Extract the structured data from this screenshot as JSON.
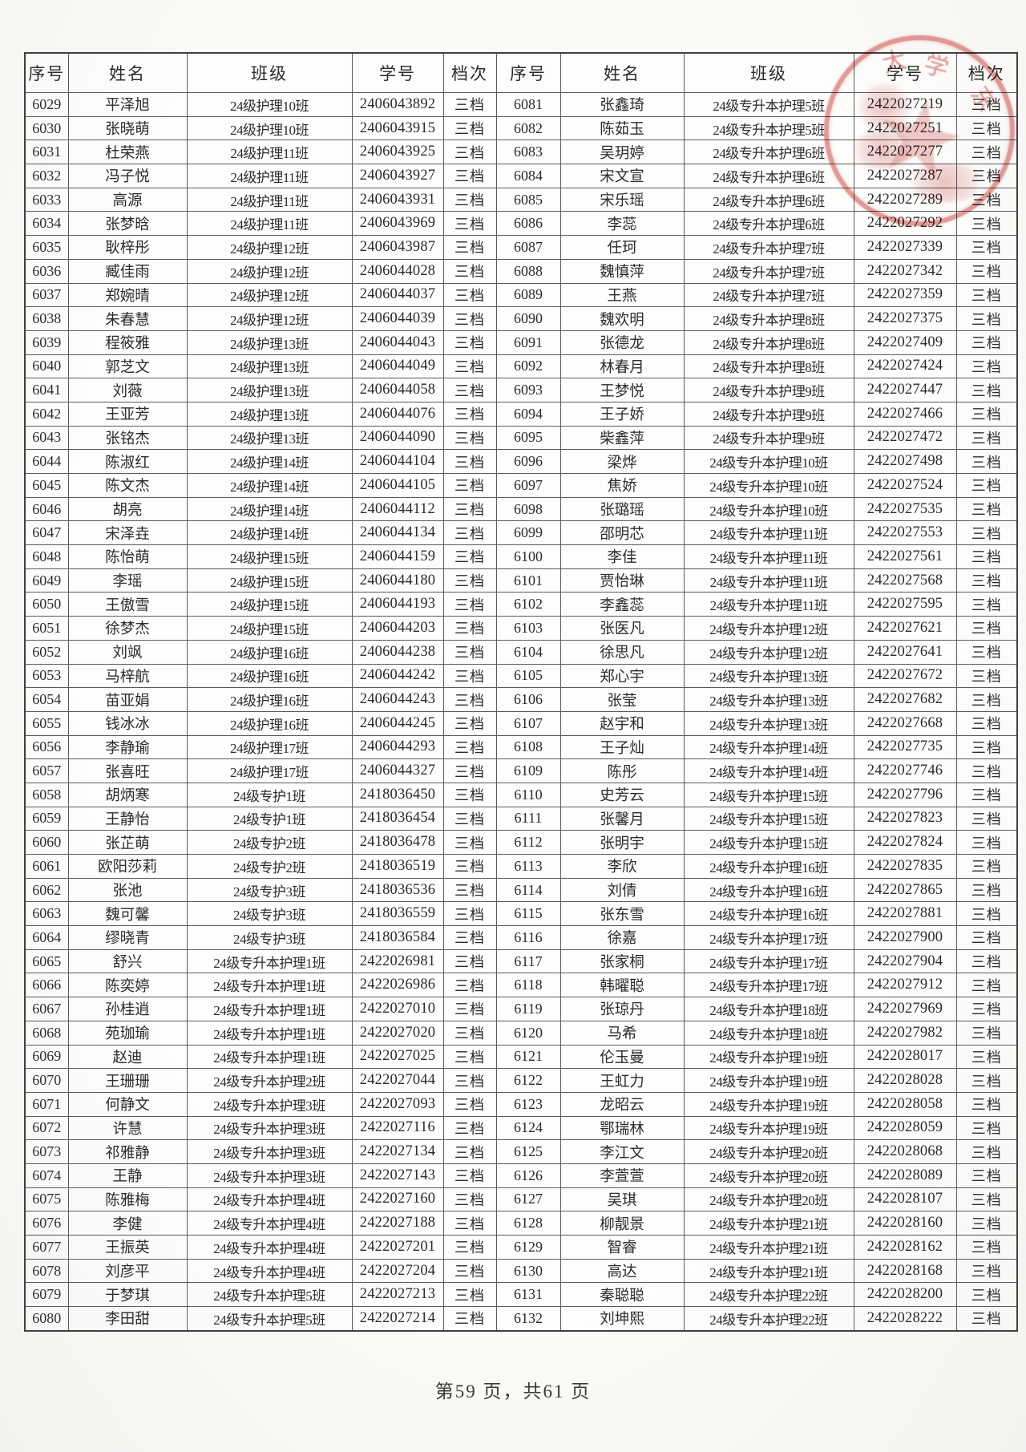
{
  "page": {
    "footer": "第59 页，共61 页"
  },
  "table": {
    "headers": [
      "序号",
      "姓名",
      "班级",
      "学号",
      "档次"
    ],
    "left_rows": [
      [
        "6029",
        "平泽旭",
        "24级护理10班",
        "2406043892",
        "三档"
      ],
      [
        "6030",
        "张晓萌",
        "24级护理10班",
        "2406043915",
        "三档"
      ],
      [
        "6031",
        "杜荣燕",
        "24级护理11班",
        "2406043925",
        "三档"
      ],
      [
        "6032",
        "冯子悦",
        "24级护理11班",
        "2406043927",
        "三档"
      ],
      [
        "6033",
        "高源",
        "24级护理11班",
        "2406043931",
        "三档"
      ],
      [
        "6034",
        "张梦晗",
        "24级护理11班",
        "2406043969",
        "三档"
      ],
      [
        "6035",
        "耿梓彤",
        "24级护理12班",
        "2406043987",
        "三档"
      ],
      [
        "6036",
        "臧佳雨",
        "24级护理12班",
        "2406044028",
        "三档"
      ],
      [
        "6037",
        "郑婉晴",
        "24级护理12班",
        "2406044037",
        "三档"
      ],
      [
        "6038",
        "朱春慧",
        "24级护理12班",
        "2406044039",
        "三档"
      ],
      [
        "6039",
        "程筱雅",
        "24级护理13班",
        "2406044043",
        "三档"
      ],
      [
        "6040",
        "郭芝文",
        "24级护理13班",
        "2406044049",
        "三档"
      ],
      [
        "6041",
        "刘薇",
        "24级护理13班",
        "2406044058",
        "三档"
      ],
      [
        "6042",
        "王亚芳",
        "24级护理13班",
        "2406044076",
        "三档"
      ],
      [
        "6043",
        "张铭杰",
        "24级护理13班",
        "2406044090",
        "三档"
      ],
      [
        "6044",
        "陈淑红",
        "24级护理14班",
        "2406044104",
        "三档"
      ],
      [
        "6045",
        "陈文杰",
        "24级护理14班",
        "2406044105",
        "三档"
      ],
      [
        "6046",
        "胡亮",
        "24级护理14班",
        "2406044112",
        "三档"
      ],
      [
        "6047",
        "宋泽垚",
        "24级护理14班",
        "2406044134",
        "三档"
      ],
      [
        "6048",
        "陈怡萌",
        "24级护理15班",
        "2406044159",
        "三档"
      ],
      [
        "6049",
        "李瑶",
        "24级护理15班",
        "2406044180",
        "三档"
      ],
      [
        "6050",
        "王傲雪",
        "24级护理15班",
        "2406044193",
        "三档"
      ],
      [
        "6051",
        "徐梦杰",
        "24级护理15班",
        "2406044203",
        "三档"
      ],
      [
        "6052",
        "刘飒",
        "24级护理16班",
        "2406044238",
        "三档"
      ],
      [
        "6053",
        "马梓航",
        "24级护理16班",
        "2406044242",
        "三档"
      ],
      [
        "6054",
        "苗亚娟",
        "24级护理16班",
        "2406044243",
        "三档"
      ],
      [
        "6055",
        "钱冰冰",
        "24级护理16班",
        "2406044245",
        "三档"
      ],
      [
        "6056",
        "李静瑜",
        "24级护理17班",
        "2406044293",
        "三档"
      ],
      [
        "6057",
        "张喜旺",
        "24级护理17班",
        "2406044327",
        "三档"
      ],
      [
        "6058",
        "胡炳寒",
        "24级专护1班",
        "2418036450",
        "三档"
      ],
      [
        "6059",
        "王静怡",
        "24级专护1班",
        "2418036454",
        "三档"
      ],
      [
        "6060",
        "张芷萌",
        "24级专护2班",
        "2418036478",
        "三档"
      ],
      [
        "6061",
        "欧阳莎莉",
        "24级专护2班",
        "2418036519",
        "三档"
      ],
      [
        "6062",
        "张池",
        "24级专护3班",
        "2418036536",
        "三档"
      ],
      [
        "6063",
        "魏可馨",
        "24级专护3班",
        "2418036559",
        "三档"
      ],
      [
        "6064",
        "缪晓青",
        "24级专护3班",
        "2418036584",
        "三档"
      ],
      [
        "6065",
        "舒兴",
        "24级专升本护理1班",
        "2422026981",
        "三档"
      ],
      [
        "6066",
        "陈奕婷",
        "24级专升本护理1班",
        "2422026986",
        "三档"
      ],
      [
        "6067",
        "孙桂逍",
        "24级专升本护理1班",
        "2422027010",
        "三档"
      ],
      [
        "6068",
        "苑珈瑜",
        "24级专升本护理1班",
        "2422027020",
        "三档"
      ],
      [
        "6069",
        "赵迪",
        "24级专升本护理1班",
        "2422027025",
        "三档"
      ],
      [
        "6070",
        "王珊珊",
        "24级专升本护理2班",
        "2422027044",
        "三档"
      ],
      [
        "6071",
        "何静文",
        "24级专升本护理3班",
        "2422027093",
        "三档"
      ],
      [
        "6072",
        "许慧",
        "24级专升本护理3班",
        "2422027116",
        "三档"
      ],
      [
        "6073",
        "祁雅静",
        "24级专升本护理3班",
        "2422027134",
        "三档"
      ],
      [
        "6074",
        "王静",
        "24级专升本护理3班",
        "2422027143",
        "三档"
      ],
      [
        "6075",
        "陈雅梅",
        "24级专升本护理4班",
        "2422027160",
        "三档"
      ],
      [
        "6076",
        "李健",
        "24级专升本护理4班",
        "2422027188",
        "三档"
      ],
      [
        "6077",
        "王振英",
        "24级专升本护理4班",
        "2422027201",
        "三档"
      ],
      [
        "6078",
        "刘彦平",
        "24级专升本护理4班",
        "2422027204",
        "三档"
      ],
      [
        "6079",
        "于梦琪",
        "24级专升本护理5班",
        "2422027213",
        "三档"
      ],
      [
        "6080",
        "李田甜",
        "24级专升本护理5班",
        "2422027214",
        "三档"
      ]
    ],
    "right_rows": [
      [
        "6081",
        "张鑫琦",
        "24级专升本护理5班",
        "2422027219",
        "三档"
      ],
      [
        "6082",
        "陈茹玉",
        "24级专升本护理5班",
        "2422027251",
        "三档"
      ],
      [
        "6083",
        "吴玥婷",
        "24级专升本护理6班",
        "2422027277",
        "三档"
      ],
      [
        "6084",
        "宋文宣",
        "24级专升本护理6班",
        "2422027287",
        "三档"
      ],
      [
        "6085",
        "宋乐瑶",
        "24级专升本护理6班",
        "2422027289",
        "三档"
      ],
      [
        "6086",
        "李蕊",
        "24级专升本护理6班",
        "2422027292",
        "三档"
      ],
      [
        "6087",
        "任珂",
        "24级专升本护理7班",
        "2422027339",
        "三档"
      ],
      [
        "6088",
        "魏慎萍",
        "24级专升本护理7班",
        "2422027342",
        "三档"
      ],
      [
        "6089",
        "王燕",
        "24级专升本护理7班",
        "2422027359",
        "三档"
      ],
      [
        "6090",
        "魏欢明",
        "24级专升本护理8班",
        "2422027375",
        "三档"
      ],
      [
        "6091",
        "张德龙",
        "24级专升本护理8班",
        "2422027409",
        "三档"
      ],
      [
        "6092",
        "林春月",
        "24级专升本护理8班",
        "2422027424",
        "三档"
      ],
      [
        "6093",
        "王梦悦",
        "24级专升本护理9班",
        "2422027447",
        "三档"
      ],
      [
        "6094",
        "王子娇",
        "24级专升本护理9班",
        "2422027466",
        "三档"
      ],
      [
        "6095",
        "柴鑫萍",
        "24级专升本护理9班",
        "2422027472",
        "三档"
      ],
      [
        "6096",
        "梁烨",
        "24级专升本护理10班",
        "2422027498",
        "三档"
      ],
      [
        "6097",
        "焦娇",
        "24级专升本护理10班",
        "2422027524",
        "三档"
      ],
      [
        "6098",
        "张璐瑶",
        "24级专升本护理10班",
        "2422027535",
        "三档"
      ],
      [
        "6099",
        "邵明芯",
        "24级专升本护理11班",
        "2422027553",
        "三档"
      ],
      [
        "6100",
        "李佳",
        "24级专升本护理11班",
        "2422027561",
        "三档"
      ],
      [
        "6101",
        "贾怡琳",
        "24级专升本护理11班",
        "2422027568",
        "三档"
      ],
      [
        "6102",
        "李鑫蕊",
        "24级专升本护理11班",
        "2422027595",
        "三档"
      ],
      [
        "6103",
        "张医凡",
        "24级专升本护理12班",
        "2422027621",
        "三档"
      ],
      [
        "6104",
        "徐思凡",
        "24级专升本护理12班",
        "2422027641",
        "三档"
      ],
      [
        "6105",
        "郑心宇",
        "24级专升本护理13班",
        "2422027672",
        "三档"
      ],
      [
        "6106",
        "张莹",
        "24级专升本护理13班",
        "2422027682",
        "三档"
      ],
      [
        "6107",
        "赵宇和",
        "24级专升本护理13班",
        "2422027668",
        "三档"
      ],
      [
        "6108",
        "王子灿",
        "24级专升本护理14班",
        "2422027735",
        "三档"
      ],
      [
        "6109",
        "陈彤",
        "24级专升本护理14班",
        "2422027746",
        "三档"
      ],
      [
        "6110",
        "史芳云",
        "24级专升本护理15班",
        "2422027796",
        "三档"
      ],
      [
        "6111",
        "张馨月",
        "24级专升本护理15班",
        "2422027823",
        "三档"
      ],
      [
        "6112",
        "张明宇",
        "24级专升本护理15班",
        "2422027824",
        "三档"
      ],
      [
        "6113",
        "李欣",
        "24级专升本护理16班",
        "2422027835",
        "三档"
      ],
      [
        "6114",
        "刘倩",
        "24级专升本护理16班",
        "2422027865",
        "三档"
      ],
      [
        "6115",
        "张东雪",
        "24级专升本护理16班",
        "2422027881",
        "三档"
      ],
      [
        "6116",
        "徐嘉",
        "24级专升本护理17班",
        "2422027900",
        "三档"
      ],
      [
        "6117",
        "张家桐",
        "24级专升本护理17班",
        "2422027904",
        "三档"
      ],
      [
        "6118",
        "韩曜聪",
        "24级专升本护理17班",
        "2422027912",
        "三档"
      ],
      [
        "6119",
        "张琼丹",
        "24级专升本护理18班",
        "2422027969",
        "三档"
      ],
      [
        "6120",
        "马希",
        "24级专升本护理18班",
        "2422027982",
        "三档"
      ],
      [
        "6121",
        "伦玉曼",
        "24级专升本护理19班",
        "2422028017",
        "三档"
      ],
      [
        "6122",
        "王虹力",
        "24级专升本护理19班",
        "2422028028",
        "三档"
      ],
      [
        "6123",
        "龙昭云",
        "24级专升本护理19班",
        "2422028058",
        "三档"
      ],
      [
        "6124",
        "鄂瑞林",
        "24级专升本护理19班",
        "2422028059",
        "三档"
      ],
      [
        "6125",
        "李江文",
        "24级专升本护理20班",
        "2422028068",
        "三档"
      ],
      [
        "6126",
        "李萱萱",
        "24级专升本护理20班",
        "2422028089",
        "三档"
      ],
      [
        "6127",
        "吴琪",
        "24级专升本护理20班",
        "2422028107",
        "三档"
      ],
      [
        "6128",
        "柳靓景",
        "24级专升本护理21班",
        "2422028160",
        "三档"
      ],
      [
        "6129",
        "智睿",
        "24级专升本护理21班",
        "2422028162",
        "三档"
      ],
      [
        "6130",
        "高达",
        "24级专升本护理21班",
        "2422028168",
        "三档"
      ],
      [
        "6131",
        "秦聪聪",
        "24级专升本护理22班",
        "2422028200",
        "三档"
      ],
      [
        "6132",
        "刘坤熙",
        "24级专升本护理22班",
        "2422028222",
        "三档"
      ]
    ]
  },
  "stamp": {
    "type": "red-circular-seal",
    "color": "#c73732",
    "star": "★",
    "arc_chars": [
      "大",
      "学",
      "东"
    ]
  }
}
